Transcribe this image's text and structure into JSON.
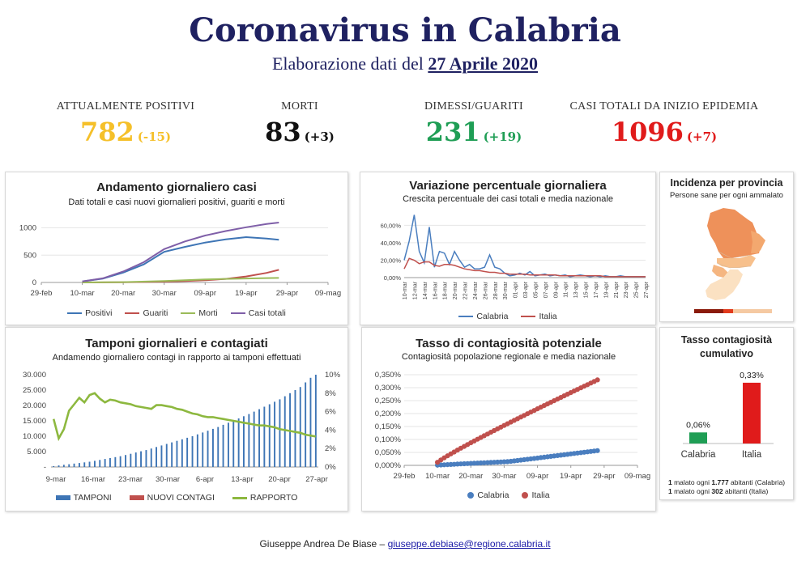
{
  "header": {
    "title": "Coronavirus in Calabria",
    "subtitle_prefix": "Elaborazione dati del",
    "subtitle_date": "27 Aprile 2020"
  },
  "kpis": [
    {
      "label": "ATTUALMENTE POSITIVI",
      "value": "782",
      "delta": "(-15)",
      "color": "#f5c02a"
    },
    {
      "label": "MORTI",
      "value": "83",
      "delta": "(+3)",
      "color": "#111111"
    },
    {
      "label": "DIMESSI/GUARITI",
      "value": "231",
      "delta": "(+19)",
      "color": "#1f9e55"
    },
    {
      "label": "CASI TOTALI DA INIZIO EPIDEMIA",
      "value": "1096",
      "delta": "(+7)",
      "color": "#e01b1b"
    }
  ],
  "panels": {
    "andamento": {
      "title": "Andamento giornaliero casi",
      "subtitle": "Dati totali e casi nuovi giornalieri positivi, guariti e morti"
    },
    "variazione": {
      "title": "Variazione percentuale giornaliera",
      "subtitle": "Crescita percentuale dei casi totali e media nazionale"
    },
    "incidenza": {
      "title": "Incidenza per provincia",
      "subtitle": "Persone sane per ogni ammalato"
    },
    "tamponi": {
      "title": "Tamponi giornalieri e contagiati",
      "subtitle": "Andamendo giornaliero contagi in rapporto ai tamponi effettuati"
    },
    "tasso": {
      "title": "Tasso di contagiosità potenziale",
      "subtitle": "Contagiosità popolazione regionale e media nazionale"
    },
    "cumulativo": {
      "title_line1": "Tasso contagiosità",
      "title_line2": "cumulativo",
      "note1_a": "1",
      "note1_b": " malato ogni ",
      "note1_c": "1.777",
      "note1_d": " abitanti (Calabria)",
      "note2_a": "1",
      "note2_b": " malato ogni ",
      "note2_c": "302",
      "note2_d": " abitanti (Italia)"
    }
  },
  "footer": {
    "author": "Giuseppe Andrea De Biase – ",
    "email": "giuseppe.debiase@regione.calabria.it"
  },
  "colors": {
    "positivi": "#3e75b5",
    "guariti": "#c0504d",
    "morti": "#9bbb59",
    "casi_totali": "#7f5fa8",
    "calabria": "#4a7ebf",
    "italia": "#c0504d",
    "tamponi": "#3e75b5",
    "rapporto": "#8db83f",
    "bar_calabria": "#1f9e55",
    "bar_italia": "#e01b1b"
  },
  "chart_data": [
    {
      "id": "andamento",
      "type": "line",
      "title": "Andamento giornaliero casi",
      "x_ticks": [
        "29-feb",
        "10-mar",
        "20-mar",
        "30-mar",
        "09-apr",
        "19-apr",
        "29-apr",
        "09-mag"
      ],
      "xlim": [
        "2020-02-29",
        "2020-05-09"
      ],
      "ylim": [
        0,
        1200
      ],
      "y_ticks": [
        "0",
        "500",
        "1000"
      ],
      "series": [
        {
          "name": "Positivi",
          "x": [
            "2020-03-10",
            "2020-03-15",
            "2020-03-20",
            "2020-03-25",
            "2020-03-30",
            "2020-04-04",
            "2020-04-09",
            "2020-04-14",
            "2020-04-19",
            "2020-04-24",
            "2020-04-27"
          ],
          "y": [
            20,
            70,
            180,
            330,
            560,
            650,
            730,
            790,
            830,
            805,
            782
          ]
        },
        {
          "name": "Guariti",
          "x": [
            "2020-03-10",
            "2020-03-20",
            "2020-03-30",
            "2020-04-04",
            "2020-04-09",
            "2020-04-14",
            "2020-04-19",
            "2020-04-24",
            "2020-04-27"
          ],
          "y": [
            0,
            5,
            15,
            25,
            40,
            65,
            110,
            175,
            231
          ]
        },
        {
          "name": "Morti",
          "x": [
            "2020-03-10",
            "2020-03-20",
            "2020-03-30",
            "2020-04-04",
            "2020-04-09",
            "2020-04-14",
            "2020-04-19",
            "2020-04-24",
            "2020-04-27"
          ],
          "y": [
            0,
            6,
            25,
            40,
            55,
            65,
            72,
            80,
            83
          ]
        },
        {
          "name": "Casi totali",
          "x": [
            "2020-03-10",
            "2020-03-15",
            "2020-03-20",
            "2020-03-25",
            "2020-03-30",
            "2020-04-04",
            "2020-04-09",
            "2020-04-14",
            "2020-04-19",
            "2020-04-24",
            "2020-04-27"
          ],
          "y": [
            20,
            75,
            200,
            370,
            610,
            750,
            860,
            940,
            1010,
            1070,
            1096
          ]
        }
      ]
    },
    {
      "id": "variazione",
      "type": "line",
      "title": "Variazione percentuale giornaliera",
      "x_ticks": [
        "10-mar",
        "12-mar",
        "14-mar",
        "16-mar",
        "18-mar",
        "20-mar",
        "22-mar",
        "24-mar",
        "26-mar",
        "28-mar",
        "30-mar",
        "01-apr",
        "03-apr",
        "05-apr",
        "07-apr",
        "09-apr",
        "11-apr",
        "13-apr",
        "15-apr",
        "17-apr",
        "19-apr",
        "21-apr",
        "23-apr",
        "25-apr",
        "27-apr"
      ],
      "y_ticks": [
        "0,00%",
        "20,00%",
        "40,00%",
        "60,00%"
      ],
      "ylim": [
        0,
        0.65
      ],
      "series": [
        {
          "name": "Calabria",
          "x_index": [
            0,
            1,
            2,
            3,
            4,
            5,
            6,
            7,
            8,
            9,
            10,
            11,
            12,
            13,
            14,
            15,
            16,
            17,
            18,
            19,
            20,
            21,
            22,
            23,
            24,
            25,
            26,
            27,
            28,
            29,
            30,
            31,
            32,
            33,
            34,
            35,
            36,
            37,
            38,
            39,
            40,
            41,
            42,
            43,
            44,
            45,
            46,
            47,
            48
          ],
          "y": [
            0.2,
            0.42,
            0.72,
            0.3,
            0.17,
            0.58,
            0.12,
            0.3,
            0.28,
            0.15,
            0.3,
            0.2,
            0.12,
            0.15,
            0.1,
            0.1,
            0.12,
            0.26,
            0.12,
            0.1,
            0.05,
            0.02,
            0.03,
            0.05,
            0.03,
            0.07,
            0.02,
            0.03,
            0.04,
            0.02,
            0.03,
            0.02,
            0.03,
            0.01,
            0.02,
            0.03,
            0.02,
            0.01,
            0.02,
            0.01,
            0.02,
            0.01,
            0.01,
            0.02,
            0.01,
            0.01,
            0.01,
            0.01,
            0.01
          ]
        },
        {
          "name": "Italia",
          "x_index": [
            0,
            1,
            2,
            3,
            4,
            5,
            6,
            7,
            8,
            9,
            10,
            11,
            12,
            13,
            14,
            15,
            16,
            17,
            18,
            19,
            20,
            21,
            22,
            23,
            24,
            25,
            26,
            27,
            28,
            29,
            30,
            31,
            32,
            33,
            34,
            35,
            36,
            37,
            38,
            39,
            40,
            41,
            42,
            43,
            44,
            45,
            46,
            47,
            48
          ],
          "y": [
            0.1,
            0.22,
            0.2,
            0.16,
            0.18,
            0.18,
            0.14,
            0.13,
            0.15,
            0.15,
            0.14,
            0.12,
            0.1,
            0.09,
            0.08,
            0.08,
            0.07,
            0.06,
            0.06,
            0.05,
            0.05,
            0.04,
            0.04,
            0.04,
            0.04,
            0.03,
            0.03,
            0.03,
            0.03,
            0.03,
            0.03,
            0.02,
            0.02,
            0.02,
            0.02,
            0.02,
            0.02,
            0.02,
            0.02,
            0.02,
            0.01,
            0.01,
            0.01,
            0.01,
            0.01,
            0.01,
            0.01,
            0.01,
            0.01
          ]
        }
      ]
    },
    {
      "id": "tamponi",
      "type": "bar",
      "title": "Tamponi giornalieri e contagiati",
      "x_ticks": [
        "9-mar",
        "16-mar",
        "23-mar",
        "30-mar",
        "6-apr",
        "13-apr",
        "20-apr",
        "27-apr"
      ],
      "y_left_ticks": [
        "-",
        "5.000",
        "10.000",
        "15.000",
        "20.000",
        "25.000",
        "30.000"
      ],
      "y_right_ticks": [
        "0%",
        "2%",
        "4%",
        "6%",
        "8%",
        "10%"
      ],
      "ylim_left": [
        0,
        30000
      ],
      "ylim_right": [
        0,
        0.1
      ],
      "series": [
        {
          "name": "TAMPONI",
          "type": "bar",
          "day_index_start": 0,
          "values": [
            300,
            500,
            700,
            900,
            1100,
            1300,
            1500,
            1700,
            2000,
            2300,
            2600,
            2900,
            3200,
            3500,
            3900,
            4300,
            4700,
            5100,
            5500,
            6000,
            6500,
            7000,
            7500,
            8000,
            8500,
            9000,
            9500,
            10000,
            10600,
            11200,
            11800,
            12400,
            13000,
            13700,
            14400,
            15100,
            15800,
            16500,
            17200,
            18000,
            18800,
            19600,
            20400,
            21200,
            22000,
            23000,
            24000,
            25000,
            26000,
            27500,
            29000,
            30000
          ]
        },
        {
          "name": "NUOVI CONTAGI",
          "type": "bar",
          "values": []
        },
        {
          "name": "RAPPORTO",
          "type": "line",
          "values": [
            0.052,
            0.031,
            0.041,
            0.061,
            0.068,
            0.075,
            0.07,
            0.078,
            0.08,
            0.074,
            0.07,
            0.073,
            0.072,
            0.07,
            0.069,
            0.068,
            0.066,
            0.065,
            0.064,
            0.063,
            0.067,
            0.067,
            0.066,
            0.065,
            0.063,
            0.062,
            0.06,
            0.058,
            0.057,
            0.055,
            0.054,
            0.054,
            0.053,
            0.052,
            0.051,
            0.05,
            0.049,
            0.048,
            0.047,
            0.046,
            0.045,
            0.045,
            0.044,
            0.043,
            0.041,
            0.04,
            0.039,
            0.038,
            0.037,
            0.035,
            0.034,
            0.033
          ]
        }
      ]
    },
    {
      "id": "tasso",
      "type": "scatter",
      "title": "Tasso di contagiosità potenziale",
      "x_ticks": [
        "29-feb",
        "10-mar",
        "20-mar",
        "30-mar",
        "09-apr",
        "19-apr",
        "29-apr",
        "09-mag"
      ],
      "y_ticks": [
        "0,000%",
        "0,050%",
        "0,100%",
        "0,150%",
        "0,200%",
        "0,250%",
        "0,300%",
        "0,350%"
      ],
      "xlim": [
        "2020-02-29",
        "2020-05-09"
      ],
      "ylim": [
        0,
        0.35
      ],
      "series": [
        {
          "name": "Calabria",
          "x_start": "2020-03-10",
          "x_end": "2020-04-27",
          "y_start": 0.001,
          "y_end": 0.057
        },
        {
          "name": "Italia",
          "x_start": "2020-03-10",
          "x_end": "2020-04-27",
          "y_start": 0.012,
          "y_end": 0.33
        }
      ]
    },
    {
      "id": "cumulativo",
      "type": "bar",
      "title": "Tasso contagiosità cumulativo",
      "categories": [
        "Calabria",
        "Italia"
      ],
      "values": [
        0.06,
        0.33
      ],
      "labels": [
        "0,06%",
        "0,33%"
      ]
    }
  ]
}
